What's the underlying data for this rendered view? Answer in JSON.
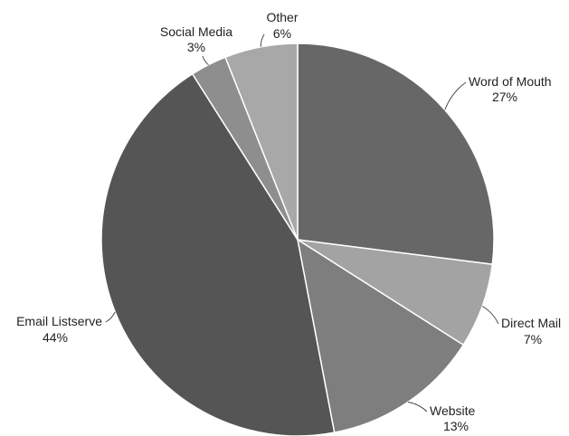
{
  "chart_data": {
    "type": "pie",
    "title": "",
    "slices": [
      {
        "name": "Word of Mouth",
        "label": "27%",
        "value": 27,
        "color": "#676767"
      },
      {
        "name": "Direct Mail",
        "label": "7%",
        "value": 7,
        "color": "#a3a3a3"
      },
      {
        "name": "Website",
        "label": "13%",
        "value": 13,
        "color": "#7e7e7e"
      },
      {
        "name": "Email Listserve",
        "label": "44%",
        "value": 44,
        "color": "#555555"
      },
      {
        "name": "Social Media",
        "label": "3%",
        "value": 3,
        "color": "#8e8e8e"
      },
      {
        "name": "Other",
        "label": "6%",
        "value": 6,
        "color": "#a8a8a8"
      }
    ],
    "start_angle": "12 o'clock",
    "direction": "clockwise",
    "legend": "none"
  }
}
